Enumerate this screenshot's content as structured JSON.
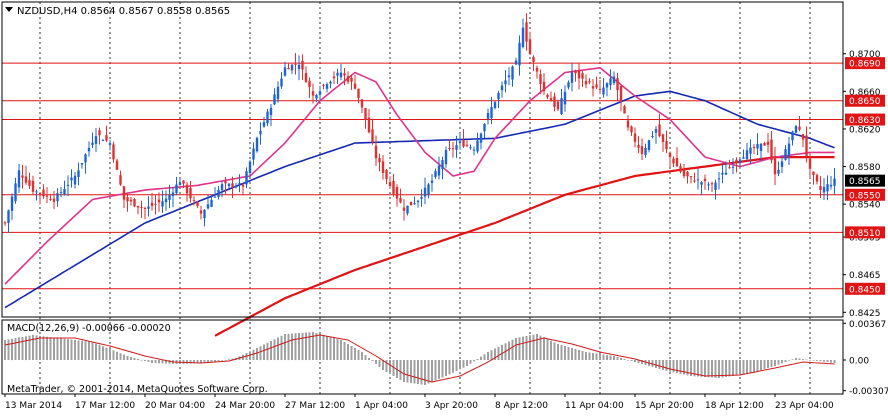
{
  "chart_data": [
    {
      "type": "candlestick",
      "title": "NZDUSD,H4 0.8564 0.8567 0.8558 0.8565",
      "symbol": "NZDUSD",
      "timeframe": "H4",
      "ohlc_label": "0.8564 0.8567 0.8558 0.8565",
      "ylim": [
        0.842,
        0.8755
      ],
      "y_ticks": [
        "0.8700",
        "0.8660",
        "0.8620",
        "0.8580",
        "0.8540",
        "0.8505",
        "0.8465",
        "0.8425"
      ],
      "y_tick_values": [
        0.87,
        0.866,
        0.862,
        0.858,
        0.854,
        0.8505,
        0.8465,
        0.8425
      ],
      "x_tick_labels": [
        "13 Mar 2014",
        "17 Mar 12:00",
        "20 Mar 04:00",
        "24 Mar 20:00",
        "27 Mar 12:00",
        "1 Apr 04:00",
        "3 Apr 20:00",
        "8 Apr 12:00",
        "11 Apr 04:00",
        "15 Apr 20:00",
        "18 Apr 12:00",
        "23 Apr 04:00"
      ],
      "x_tick_index": [
        0,
        20,
        40,
        60,
        80,
        100,
        120,
        140,
        160,
        180,
        200,
        220
      ],
      "horizontal_levels": [
        {
          "label": "0.8690",
          "value": 0.869
        },
        {
          "label": "0.8650",
          "value": 0.865
        },
        {
          "label": "0.8630",
          "value": 0.863
        },
        {
          "label": "0.8550",
          "value": 0.855
        },
        {
          "label": "0.8510",
          "value": 0.851
        },
        {
          "label": "0.8450",
          "value": 0.845
        }
      ],
      "current_price": {
        "label": "0.8565",
        "value": 0.8565
      },
      "bar_count": 238,
      "close_anchors": [
        [
          0,
          0.852
        ],
        [
          4,
          0.8575
        ],
        [
          8,
          0.8555
        ],
        [
          14,
          0.8545
        ],
        [
          20,
          0.857
        ],
        [
          26,
          0.8615
        ],
        [
          30,
          0.8605
        ],
        [
          34,
          0.8545
        ],
        [
          40,
          0.8535
        ],
        [
          46,
          0.8545
        ],
        [
          50,
          0.8565
        ],
        [
          56,
          0.853
        ],
        [
          62,
          0.856
        ],
        [
          68,
          0.856
        ],
        [
          72,
          0.861
        ],
        [
          76,
          0.8645
        ],
        [
          80,
          0.8685
        ],
        [
          84,
          0.869
        ],
        [
          88,
          0.8655
        ],
        [
          92,
          0.867
        ],
        [
          96,
          0.868
        ],
        [
          100,
          0.8665
        ],
        [
          103,
          0.863
        ],
        [
          106,
          0.859
        ],
        [
          110,
          0.856
        ],
        [
          114,
          0.8535
        ],
        [
          118,
          0.8545
        ],
        [
          122,
          0.8565
        ],
        [
          126,
          0.8595
        ],
        [
          130,
          0.8605
        ],
        [
          134,
          0.86
        ],
        [
          138,
          0.8635
        ],
        [
          142,
          0.8665
        ],
        [
          146,
          0.869
        ],
        [
          148,
          0.873
        ],
        [
          150,
          0.87
        ],
        [
          154,
          0.866
        ],
        [
          158,
          0.864
        ],
        [
          162,
          0.868
        ],
        [
          166,
          0.867
        ],
        [
          170,
          0.866
        ],
        [
          174,
          0.8675
        ],
        [
          178,
          0.862
        ],
        [
          182,
          0.8595
        ],
        [
          186,
          0.862
        ],
        [
          190,
          0.859
        ],
        [
          194,
          0.857
        ],
        [
          198,
          0.8565
        ],
        [
          202,
          0.856
        ],
        [
          206,
          0.8575
        ],
        [
          210,
          0.859
        ],
        [
          214,
          0.86
        ],
        [
          218,
          0.8605
        ],
        [
          220,
          0.857
        ],
        [
          224,
          0.8605
        ],
        [
          226,
          0.8625
        ],
        [
          228,
          0.861
        ],
        [
          230,
          0.8575
        ],
        [
          233,
          0.8555
        ],
        [
          237,
          0.8565
        ]
      ],
      "ma_blue_anchors": [
        [
          0,
          0.843
        ],
        [
          40,
          0.852
        ],
        [
          80,
          0.858
        ],
        [
          100,
          0.8605
        ],
        [
          140,
          0.861
        ],
        [
          160,
          0.8625
        ],
        [
          170,
          0.864
        ],
        [
          180,
          0.8655
        ],
        [
          190,
          0.866
        ],
        [
          200,
          0.865
        ],
        [
          215,
          0.8625
        ],
        [
          230,
          0.861
        ],
        [
          237,
          0.86
        ]
      ],
      "ma_pink_anchors": [
        [
          0,
          0.8455
        ],
        [
          12,
          0.85
        ],
        [
          25,
          0.8545
        ],
        [
          40,
          0.8555
        ],
        [
          55,
          0.856
        ],
        [
          70,
          0.857
        ],
        [
          80,
          0.8605
        ],
        [
          90,
          0.865
        ],
        [
          100,
          0.868
        ],
        [
          106,
          0.867
        ],
        [
          112,
          0.8635
        ],
        [
          120,
          0.8595
        ],
        [
          128,
          0.857
        ],
        [
          134,
          0.8575
        ],
        [
          140,
          0.861
        ],
        [
          150,
          0.865
        ],
        [
          160,
          0.868
        ],
        [
          170,
          0.8685
        ],
        [
          180,
          0.8655
        ],
        [
          190,
          0.863
        ],
        [
          200,
          0.859
        ],
        [
          210,
          0.858
        ],
        [
          220,
          0.859
        ],
        [
          230,
          0.8595
        ],
        [
          237,
          0.8595
        ]
      ],
      "ma_red_anchors": [
        [
          60,
          0.84
        ],
        [
          80,
          0.844
        ],
        [
          100,
          0.847
        ],
        [
          120,
          0.8495
        ],
        [
          140,
          0.852
        ],
        [
          160,
          0.855
        ],
        [
          180,
          0.857
        ],
        [
          200,
          0.858
        ],
        [
          220,
          0.859
        ],
        [
          237,
          0.859
        ]
      ]
    },
    {
      "type": "bar",
      "title": "MACD(12,26,9) -0.00066 -0.00020",
      "ylim": [
        -0.0034,
        0.004
      ],
      "y_ticks": [
        "0.00367",
        "0.00",
        "-0.00307"
      ],
      "y_tick_values": [
        0.00367,
        0.0,
        -0.00307
      ],
      "hist_anchors": [
        [
          0,
          0.002
        ],
        [
          8,
          0.0025
        ],
        [
          15,
          0.0022
        ],
        [
          25,
          0.0018
        ],
        [
          35,
          0.0004
        ],
        [
          42,
          -0.0003
        ],
        [
          50,
          -0.0004
        ],
        [
          58,
          -0.0003
        ],
        [
          66,
          0.0002
        ],
        [
          72,
          0.0012
        ],
        [
          80,
          0.0026
        ],
        [
          88,
          0.0028
        ],
        [
          96,
          0.002
        ],
        [
          102,
          0.0008
        ],
        [
          108,
          -0.001
        ],
        [
          114,
          -0.0022
        ],
        [
          120,
          -0.0025
        ],
        [
          126,
          -0.0016
        ],
        [
          132,
          -0.0006
        ],
        [
          138,
          0.0008
        ],
        [
          146,
          0.0022
        ],
        [
          152,
          0.0026
        ],
        [
          158,
          0.0016
        ],
        [
          166,
          0.0008
        ],
        [
          174,
          0.0004
        ],
        [
          180,
          -0.0002
        ],
        [
          188,
          -0.001
        ],
        [
          196,
          -0.0016
        ],
        [
          204,
          -0.0018
        ],
        [
          212,
          -0.0014
        ],
        [
          220,
          -0.0006
        ],
        [
          226,
          0.0002
        ],
        [
          230,
          0.0
        ],
        [
          237,
          -0.0003
        ]
      ],
      "signal_anchors": [
        [
          0,
          0.0015
        ],
        [
          10,
          0.0022
        ],
        [
          20,
          0.0022
        ],
        [
          30,
          0.0014
        ],
        [
          40,
          0.0004
        ],
        [
          48,
          -0.0002
        ],
        [
          56,
          -0.0003
        ],
        [
          64,
          -0.0001
        ],
        [
          72,
          0.0007
        ],
        [
          82,
          0.002
        ],
        [
          90,
          0.0025
        ],
        [
          98,
          0.002
        ],
        [
          106,
          0.0004
        ],
        [
          114,
          -0.0014
        ],
        [
          122,
          -0.0022
        ],
        [
          130,
          -0.0016
        ],
        [
          138,
          -0.0002
        ],
        [
          146,
          0.0015
        ],
        [
          154,
          0.0022
        ],
        [
          162,
          0.0016
        ],
        [
          170,
          0.0008
        ],
        [
          180,
          0.0001
        ],
        [
          190,
          -0.0009
        ],
        [
          200,
          -0.0016
        ],
        [
          210,
          -0.0015
        ],
        [
          220,
          -0.0008
        ],
        [
          228,
          -0.0002
        ],
        [
          237,
          -0.0004
        ]
      ]
    }
  ],
  "footer": {
    "copyright": "MetaTrader, © 2001-2014, MetaQuotes Software Corp."
  },
  "colors": {
    "bull": "#1e64d6",
    "bear": "#e03030",
    "ma_blue": "#1428b4",
    "ma_pink": "#e0338c",
    "ma_red": "#e01414",
    "level": "#e01414",
    "hist": "#a0a0a0",
    "signal": "#d01818",
    "grid": "#000000"
  }
}
